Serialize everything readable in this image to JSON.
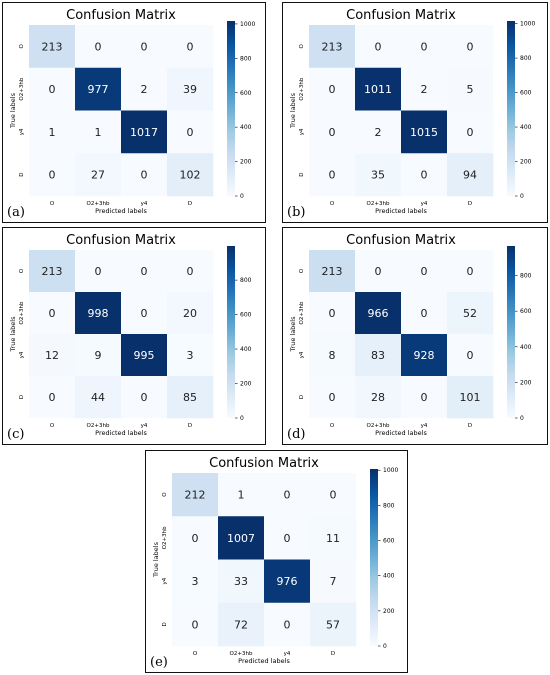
{
  "chart_data": [
    {
      "type": "heatmap",
      "panel_label": "(a)",
      "title": "Confusion Matrix",
      "xlabel": "Predicted labels",
      "ylabel": "True labels",
      "x_tick_labels": [
        "O",
        "O2+3hb",
        "y4",
        "D"
      ],
      "y_tick_labels": [
        "O",
        "O2+3hb",
        "y4",
        "D"
      ],
      "matrix": [
        [
          213,
          0,
          0,
          0
        ],
        [
          0,
          977,
          2,
          39
        ],
        [
          1,
          1,
          1017,
          0
        ],
        [
          0,
          27,
          0,
          102
        ]
      ],
      "colorbar_ticks": [
        0,
        200,
        400,
        600,
        800,
        1000
      ],
      "vmax": 1017,
      "colormap": "Blues"
    },
    {
      "type": "heatmap",
      "panel_label": "(b)",
      "title": "Confusion Matrix",
      "xlabel": "Predicted labels",
      "ylabel": "True labels",
      "x_tick_labels": [
        "O",
        "O2+3hb",
        "y4",
        "D"
      ],
      "y_tick_labels": [
        "O",
        "O2+3hb",
        "y4",
        "D"
      ],
      "matrix": [
        [
          213,
          0,
          0,
          0
        ],
        [
          0,
          1011,
          2,
          5
        ],
        [
          0,
          2,
          1015,
          0
        ],
        [
          0,
          35,
          0,
          94
        ]
      ],
      "colorbar_ticks": [
        0,
        200,
        400,
        600,
        800,
        1000
      ],
      "vmax": 1015,
      "colormap": "Blues"
    },
    {
      "type": "heatmap",
      "panel_label": "(c)",
      "title": "Confusion Matrix",
      "xlabel": "Predicted labels",
      "ylabel": "True labels",
      "x_tick_labels": [
        "O",
        "O2+3hb",
        "y4",
        "D"
      ],
      "y_tick_labels": [
        "O",
        "O2+3hb",
        "y4",
        "D"
      ],
      "matrix": [
        [
          213,
          0,
          0,
          0
        ],
        [
          0,
          998,
          0,
          20
        ],
        [
          12,
          9,
          995,
          3
        ],
        [
          0,
          44,
          0,
          85
        ]
      ],
      "colorbar_ticks": [
        0,
        200,
        400,
        600,
        800
      ],
      "vmax": 998,
      "colormap": "Blues"
    },
    {
      "type": "heatmap",
      "panel_label": "(d)",
      "title": "Confusion Matrix",
      "xlabel": "Predicted labels",
      "ylabel": "True labels",
      "x_tick_labels": [
        "O",
        "O2+3hb",
        "y4",
        "D"
      ],
      "y_tick_labels": [
        "O",
        "O2+3hb",
        "y4",
        "D"
      ],
      "matrix": [
        [
          213,
          0,
          0,
          0
        ],
        [
          0,
          966,
          0,
          52
        ],
        [
          8,
          83,
          928,
          0
        ],
        [
          0,
          28,
          0,
          101
        ]
      ],
      "colorbar_ticks": [
        0,
        200,
        400,
        600,
        800
      ],
      "vmax": 966,
      "colormap": "Blues"
    },
    {
      "type": "heatmap",
      "panel_label": "(e)",
      "title": "Confusion Matrix",
      "xlabel": "Predicted labels",
      "ylabel": "True labels",
      "x_tick_labels": [
        "O",
        "O2+3hb",
        "y4",
        "D"
      ],
      "y_tick_labels": [
        "O",
        "O2+3hb",
        "y4",
        "D"
      ],
      "matrix": [
        [
          212,
          1,
          0,
          0
        ],
        [
          0,
          1007,
          0,
          11
        ],
        [
          3,
          33,
          976,
          7
        ],
        [
          0,
          72,
          0,
          57
        ]
      ],
      "colorbar_ticks": [
        0,
        200,
        400,
        600,
        800,
        1000
      ],
      "vmax": 1007,
      "colormap": "Blues"
    }
  ]
}
